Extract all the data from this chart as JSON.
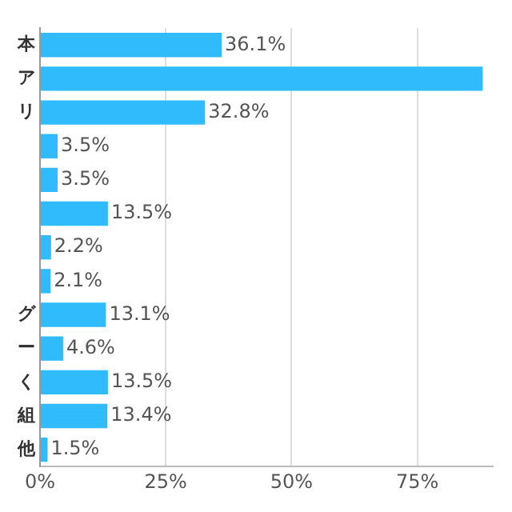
{
  "chart_data": {
    "type": "bar",
    "orientation": "horizontal",
    "categories": [
      "本",
      "ア",
      "リ",
      null,
      null,
      null,
      null,
      null,
      "グ",
      "ー",
      "く",
      "組",
      "他"
    ],
    "values": [
      36.1,
      88,
      32.8,
      3.5,
      3.5,
      13.5,
      2.2,
      2.1,
      13.1,
      4.6,
      13.5,
      13.4,
      1.5
    ],
    "value_labels": [
      "36.1%",
      null,
      "32.8%",
      "3.5%",
      "3.5%",
      "13.5%",
      "2.2%",
      "2.1%",
      "13.1%",
      "4.6%",
      "13.5%",
      "13.4%",
      "1.5%"
    ],
    "color": "#30bcfc",
    "xlim": [
      0,
      90
    ],
    "xticks": [
      {
        "value": 0,
        "label": "0%"
      },
      {
        "value": 25,
        "label": "25%"
      },
      {
        "value": 50,
        "label": "50%"
      },
      {
        "value": 75,
        "label": "75%"
      }
    ],
    "grid": "x"
  }
}
